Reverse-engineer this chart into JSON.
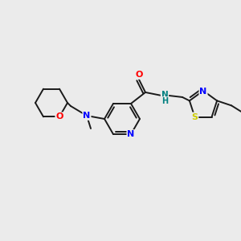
{
  "background_color": "#ebebeb",
  "bond_color": "#1a1a1a",
  "atom_colors": {
    "O": "#ff0000",
    "N": "#0000ff",
    "N_amide": "#008080",
    "S": "#cccc00",
    "C": "#1a1a1a"
  }
}
